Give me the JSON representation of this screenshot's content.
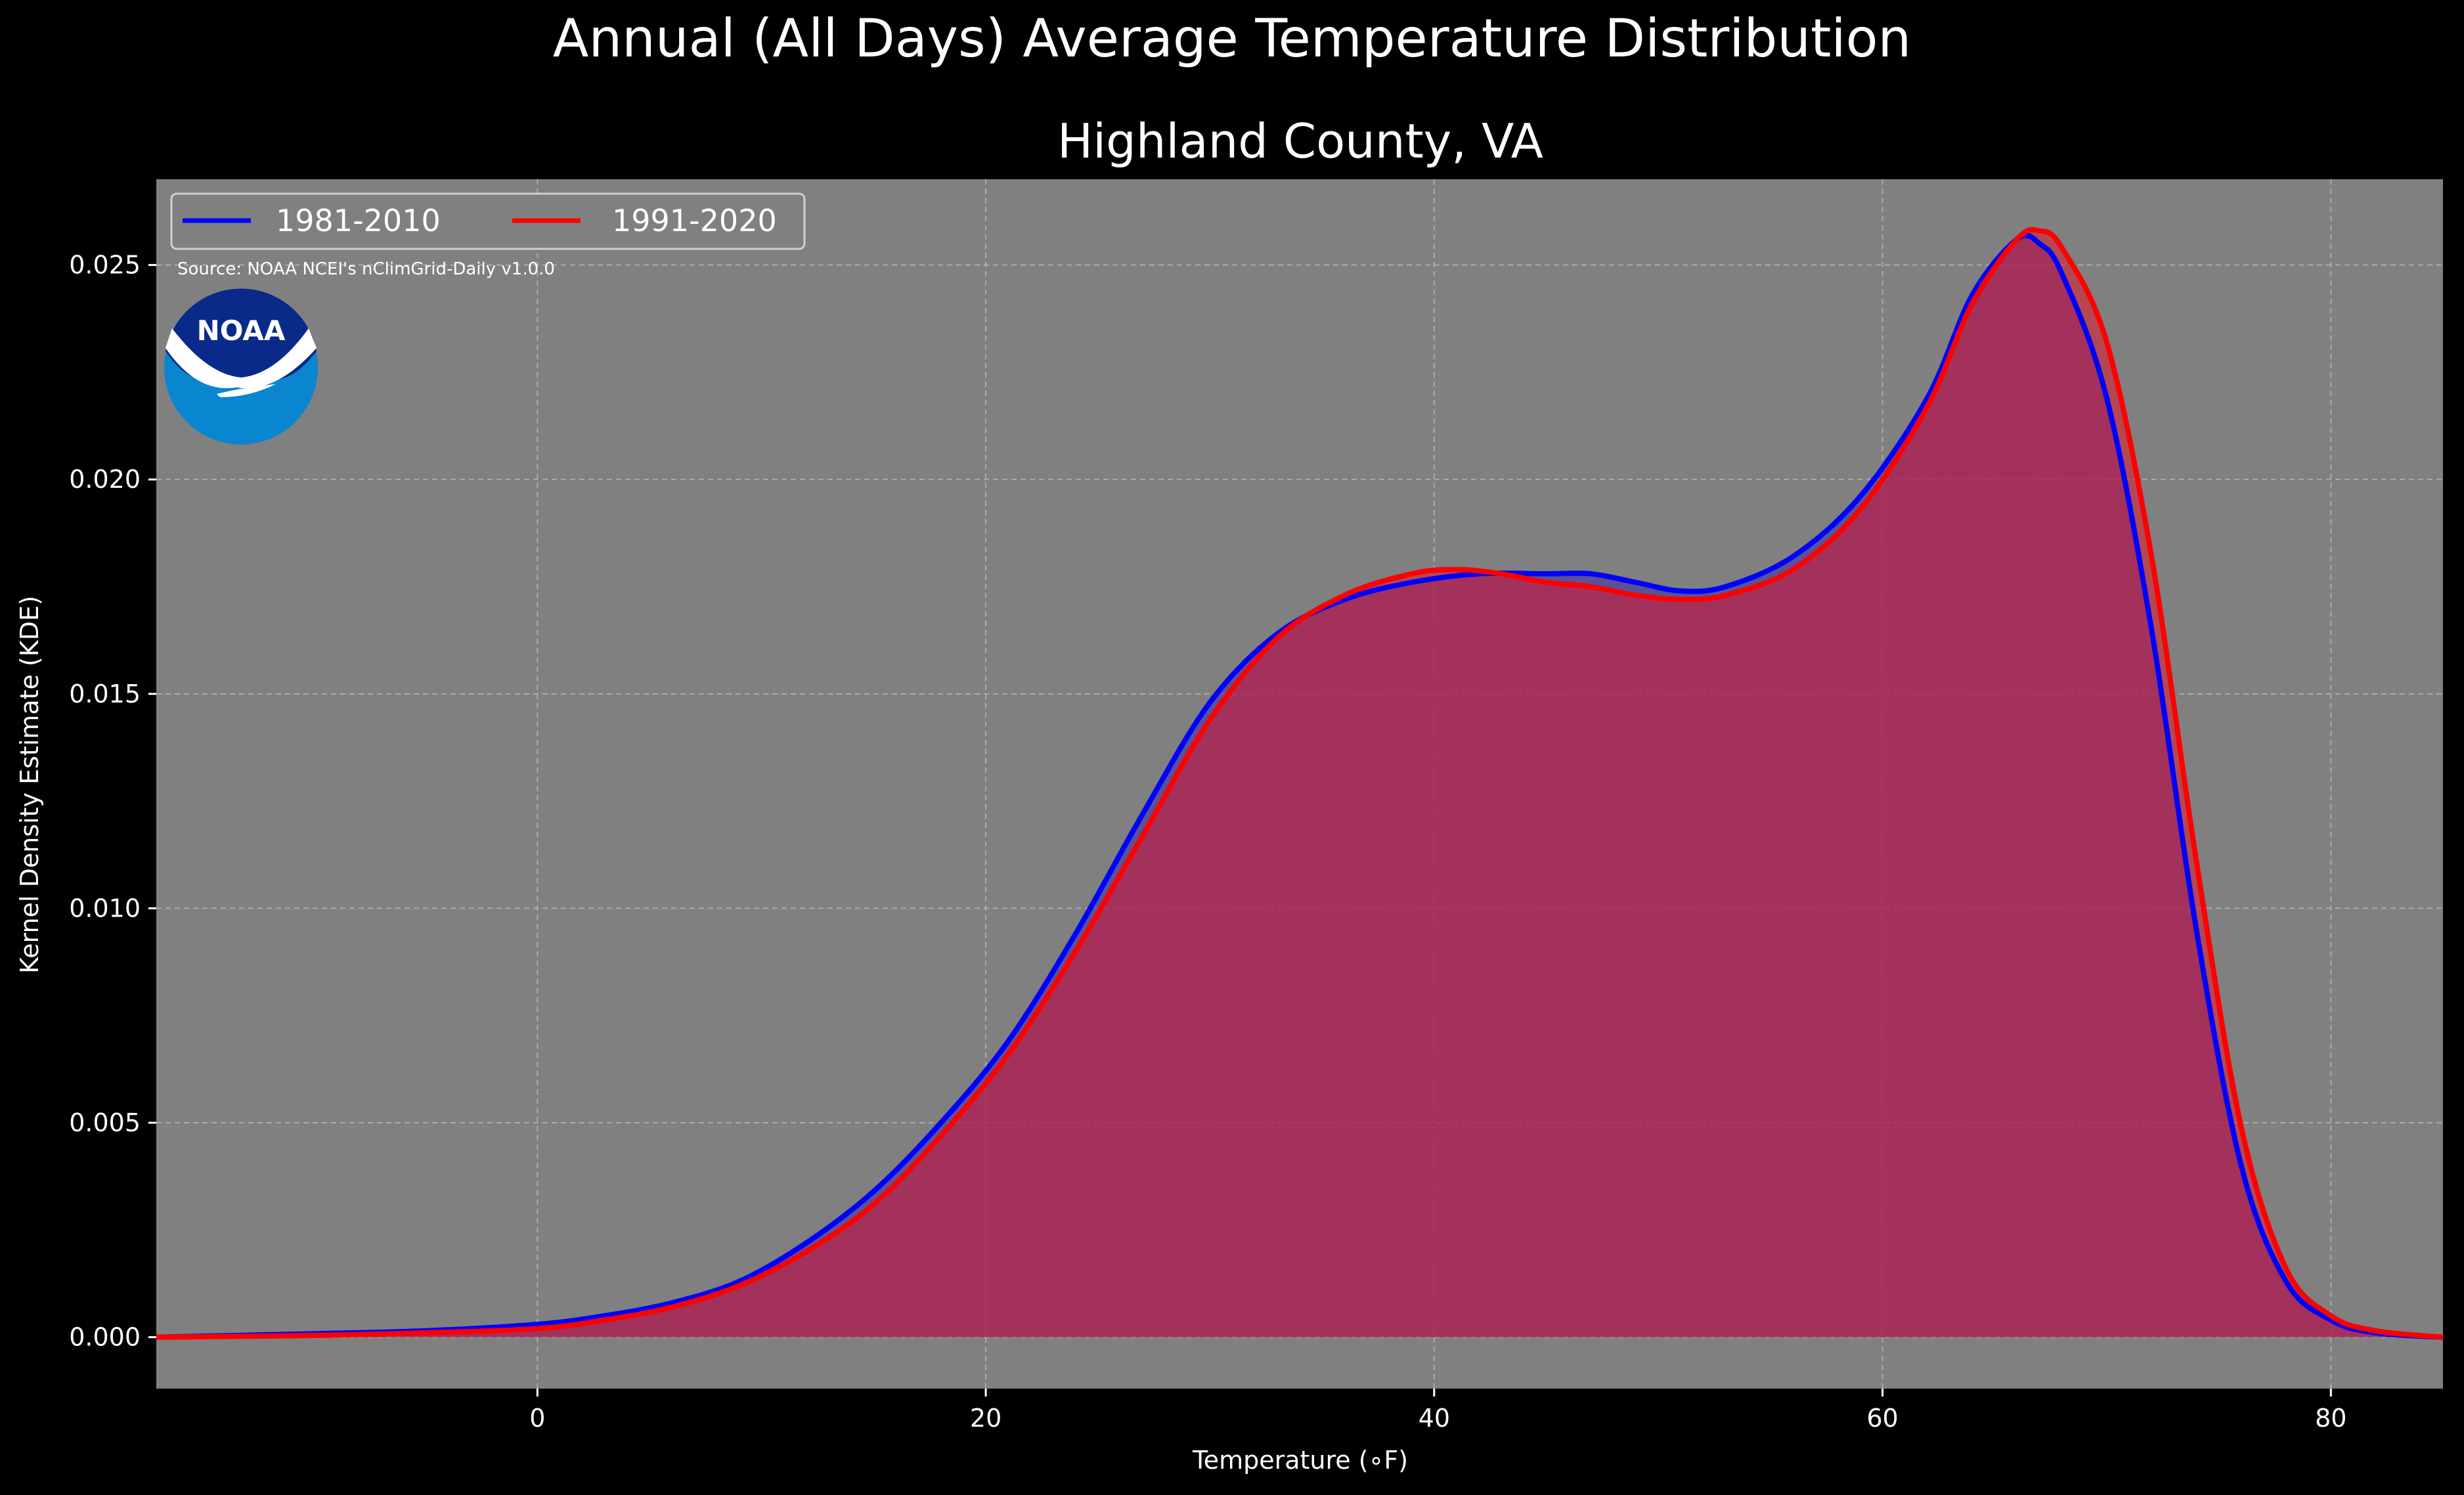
{
  "figure": {
    "suptitle": "Annual (All Days) Average Temperature Distribution",
    "source": "Source: NOAA NCEI's nClimGrid-Daily v1.0.0",
    "logo_text": "NOAA"
  },
  "colors": {
    "background": "#000000",
    "plot_bg": "#808080",
    "series_1981": "#0000ff",
    "series_1991": "#ff0000",
    "fill_overlap": "#9e1f5d",
    "logo_dark": "#0a2a8a",
    "logo_light": "#0a85d0"
  },
  "chart_data": {
    "type": "area",
    "title": "Highland County, VA",
    "xlabel": "Temperature (∘F)",
    "ylabel": "Kernel Density Estimate (KDE)",
    "xlim": [
      -17,
      85
    ],
    "ylim": [
      -0.0012,
      0.027
    ],
    "xticks": [
      0,
      20,
      40,
      60,
      80
    ],
    "yticks": [
      0.0,
      0.005,
      0.01,
      0.015,
      0.02,
      0.025
    ],
    "xtick_labels": [
      "0",
      "20",
      "40",
      "60",
      "80"
    ],
    "ytick_labels": [
      "0.000",
      "0.005",
      "0.010",
      "0.015",
      "0.020",
      "0.025"
    ],
    "grid": true,
    "legend_position": "top-left",
    "series": [
      {
        "name": "1981-2010",
        "color": "#0000ff",
        "points": [
          [
            -17,
            0.0
          ],
          [
            -10,
            8e-05
          ],
          [
            -5,
            0.00015
          ],
          [
            0,
            0.0003
          ],
          [
            3,
            0.0005
          ],
          [
            6,
            0.0008
          ],
          [
            9,
            0.0013
          ],
          [
            12,
            0.0022
          ],
          [
            15,
            0.0034
          ],
          [
            18,
            0.005
          ],
          [
            21,
            0.0069
          ],
          [
            24,
            0.0094
          ],
          [
            27,
            0.0122
          ],
          [
            30,
            0.0148
          ],
          [
            33,
            0.0164
          ],
          [
            36,
            0.0172
          ],
          [
            39,
            0.0176
          ],
          [
            42,
            0.0178
          ],
          [
            45,
            0.0178
          ],
          [
            47,
            0.0178
          ],
          [
            49,
            0.0176
          ],
          [
            51,
            0.0174
          ],
          [
            53,
            0.0175
          ],
          [
            56,
            0.0182
          ],
          [
            59,
            0.0196
          ],
          [
            62,
            0.0219
          ],
          [
            64,
            0.0243
          ],
          [
            66,
            0.0256
          ],
          [
            67,
            0.0255
          ],
          [
            68,
            0.0248
          ],
          [
            70,
            0.0219
          ],
          [
            72,
            0.0165
          ],
          [
            74,
            0.0095
          ],
          [
            76,
            0.004
          ],
          [
            78,
            0.0013
          ],
          [
            80,
            0.0004
          ],
          [
            82,
            0.0001
          ],
          [
            85,
            0.0
          ]
        ]
      },
      {
        "name": "1991-2020",
        "color": "#ff0000",
        "points": [
          [
            -17,
            0.0
          ],
          [
            -10,
            4e-05
          ],
          [
            -5,
            0.0001
          ],
          [
            0,
            0.0002
          ],
          [
            3,
            0.0004
          ],
          [
            6,
            0.0007
          ],
          [
            9,
            0.0012
          ],
          [
            12,
            0.002
          ],
          [
            15,
            0.0031
          ],
          [
            18,
            0.0047
          ],
          [
            21,
            0.0066
          ],
          [
            24,
            0.009
          ],
          [
            27,
            0.0117
          ],
          [
            30,
            0.0144
          ],
          [
            33,
            0.0163
          ],
          [
            36,
            0.0173
          ],
          [
            39,
            0.0178
          ],
          [
            41,
            0.0179
          ],
          [
            43,
            0.0178
          ],
          [
            45,
            0.0176
          ],
          [
            47,
            0.0175
          ],
          [
            49,
            0.0173
          ],
          [
            51,
            0.0172
          ],
          [
            53,
            0.0173
          ],
          [
            56,
            0.0179
          ],
          [
            59,
            0.0193
          ],
          [
            62,
            0.0217
          ],
          [
            64,
            0.0241
          ],
          [
            66,
            0.0256
          ],
          [
            67,
            0.0258
          ],
          [
            68,
            0.0254
          ],
          [
            70,
            0.0232
          ],
          [
            72,
            0.0182
          ],
          [
            74,
            0.0111
          ],
          [
            76,
            0.0049
          ],
          [
            78,
            0.0016
          ],
          [
            80,
            0.0005
          ],
          [
            82,
            0.00015
          ],
          [
            85,
            0.0
          ]
        ]
      }
    ]
  }
}
